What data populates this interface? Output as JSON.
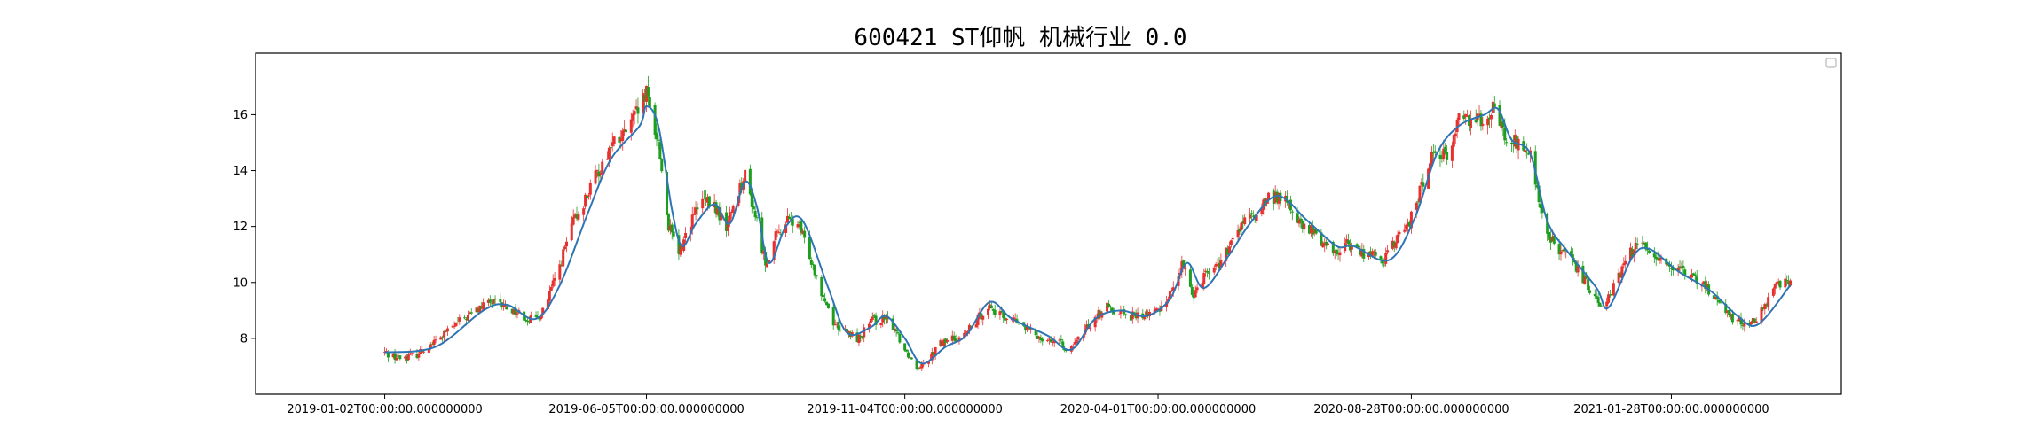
{
  "chart_data": {
    "type": "candlestick",
    "title": "600421 ST仰帆 机械行业 0.0",
    "xlabel": "",
    "ylabel": "",
    "ylim": [
      6.0,
      18.2
    ],
    "yticks": [
      8,
      10,
      12,
      14,
      16
    ],
    "legend": "top-right (empty)",
    "grid": false,
    "colors": {
      "up": "#e8312f",
      "down": "#1e9e1e",
      "line": "#2e75b6",
      "frame": "#000000"
    },
    "x_tick_labels": [
      "2019-01-02T00:00:00.000000000",
      "2019-06-05T00:00:00.000000000",
      "2019-11-04T00:00:00.000000000",
      "2020-04-01T00:00:00.000000000",
      "2020-08-28T00:00:00.000000000",
      "2021-01-28T00:00:00.000000000"
    ],
    "x_tick_dates": [
      "2019-01-02",
      "2019-06-05",
      "2019-11-04",
      "2020-04-01",
      "2020-08-28",
      "2021-01-28"
    ],
    "x_range": [
      "2018-10-18",
      "2021-05-08"
    ],
    "price_path": [
      [
        "2019-01-02",
        7.5
      ],
      [
        "2019-01-10",
        7.3
      ],
      [
        "2019-01-20",
        7.4
      ],
      [
        "2019-02-01",
        7.9
      ],
      [
        "2019-02-15",
        8.6
      ],
      [
        "2019-02-25",
        9.0
      ],
      [
        "2019-03-05",
        9.3
      ],
      [
        "2019-03-15",
        9.1
      ],
      [
        "2019-03-25",
        8.8
      ],
      [
        "2019-04-01",
        8.6
      ],
      [
        "2019-04-08",
        9.4
      ],
      [
        "2019-04-15",
        10.6
      ],
      [
        "2019-04-22",
        12.0
      ],
      [
        "2019-04-30",
        13.0
      ],
      [
        "2019-05-08",
        14.0
      ],
      [
        "2019-05-15",
        14.9
      ],
      [
        "2019-05-22",
        15.2
      ],
      [
        "2019-05-30",
        16.0
      ],
      [
        "2019-06-05",
        16.7
      ],
      [
        "2019-06-12",
        15.0
      ],
      [
        "2019-06-18",
        12.0
      ],
      [
        "2019-06-24",
        11.0
      ],
      [
        "2019-07-01",
        12.2
      ],
      [
        "2019-07-08",
        12.9
      ],
      [
        "2019-07-15",
        12.7
      ],
      [
        "2019-07-22",
        12.0
      ],
      [
        "2019-07-29",
        13.3
      ],
      [
        "2019-08-02",
        13.8
      ],
      [
        "2019-08-08",
        12.4
      ],
      [
        "2019-08-14",
        10.7
      ],
      [
        "2019-08-20",
        11.6
      ],
      [
        "2019-08-26",
        12.2
      ],
      [
        "2019-09-02",
        12.1
      ],
      [
        "2019-09-09",
        11.0
      ],
      [
        "2019-09-16",
        9.7
      ],
      [
        "2019-09-23",
        8.6
      ],
      [
        "2019-09-30",
        8.2
      ],
      [
        "2019-10-08",
        8.0
      ],
      [
        "2019-10-15",
        8.6
      ],
      [
        "2019-10-22",
        8.7
      ],
      [
        "2019-10-29",
        8.4
      ],
      [
        "2019-11-04",
        7.6
      ],
      [
        "2019-11-11",
        7.0
      ],
      [
        "2019-11-18",
        7.3
      ],
      [
        "2019-11-25",
        7.8
      ],
      [
        "2019-12-02",
        8.0
      ],
      [
        "2019-12-09",
        8.1
      ],
      [
        "2019-12-16",
        8.6
      ],
      [
        "2019-12-23",
        9.2
      ],
      [
        "2019-12-30",
        8.8
      ],
      [
        "2020-01-06",
        8.7
      ],
      [
        "2020-01-13",
        8.4
      ],
      [
        "2020-01-20",
        8.1
      ],
      [
        "2020-01-27",
        8.0
      ],
      [
        "2020-02-03",
        7.8
      ],
      [
        "2020-02-10",
        7.6
      ],
      [
        "2020-02-17",
        8.2
      ],
      [
        "2020-02-24",
        8.8
      ],
      [
        "2020-03-02",
        9.1
      ],
      [
        "2020-03-09",
        9.0
      ],
      [
        "2020-03-16",
        8.8
      ],
      [
        "2020-03-23",
        8.8
      ],
      [
        "2020-04-01",
        9.0
      ],
      [
        "2020-04-08",
        9.6
      ],
      [
        "2020-04-15",
        10.6
      ],
      [
        "2020-04-22",
        9.6
      ],
      [
        "2020-04-29",
        10.4
      ],
      [
        "2020-05-06",
        10.6
      ],
      [
        "2020-05-13",
        11.2
      ],
      [
        "2020-05-20",
        12.1
      ],
      [
        "2020-05-27",
        12.3
      ],
      [
        "2020-06-03",
        12.9
      ],
      [
        "2020-06-10",
        13.1
      ],
      [
        "2020-06-17",
        12.8
      ],
      [
        "2020-06-24",
        12.0
      ],
      [
        "2020-07-01",
        11.8
      ],
      [
        "2020-07-08",
        11.4
      ],
      [
        "2020-07-15",
        11.1
      ],
      [
        "2020-07-22",
        11.4
      ],
      [
        "2020-07-29",
        11.1
      ],
      [
        "2020-08-05",
        11.0
      ],
      [
        "2020-08-12",
        10.8
      ],
      [
        "2020-08-19",
        11.5
      ],
      [
        "2020-08-28",
        12.3
      ],
      [
        "2020-09-04",
        13.6
      ],
      [
        "2020-09-11",
        14.9
      ],
      [
        "2020-09-18",
        14.4
      ],
      [
        "2020-09-25",
        15.9
      ],
      [
        "2020-10-02",
        15.9
      ],
      [
        "2020-10-09",
        15.9
      ],
      [
        "2020-10-16",
        16.3
      ],
      [
        "2020-10-23",
        15.0
      ],
      [
        "2020-10-30",
        15.0
      ],
      [
        "2020-11-06",
        14.5
      ],
      [
        "2020-11-13",
        12.3
      ],
      [
        "2020-11-20",
        11.3
      ],
      [
        "2020-11-27",
        11.0
      ],
      [
        "2020-12-04",
        10.4
      ],
      [
        "2020-12-11",
        9.8
      ],
      [
        "2020-12-18",
        9.2
      ],
      [
        "2020-12-25",
        9.8
      ],
      [
        "2021-01-04",
        11.1
      ],
      [
        "2021-01-11",
        11.4
      ],
      [
        "2021-01-18",
        11.0
      ],
      [
        "2021-01-28",
        10.6
      ],
      [
        "2021-02-04",
        10.3
      ],
      [
        "2021-02-11",
        10.1
      ],
      [
        "2021-02-18",
        9.8
      ],
      [
        "2021-02-25",
        9.3
      ],
      [
        "2021-03-04",
        8.8
      ],
      [
        "2021-03-11",
        8.5
      ],
      [
        "2021-03-18",
        8.6
      ],
      [
        "2021-03-25",
        9.2
      ],
      [
        "2021-04-01",
        10.0
      ],
      [
        "2021-04-08",
        10.1
      ]
    ],
    "moving_average": [
      [
        "2019-01-02",
        7.5
      ],
      [
        "2019-02-01",
        7.7
      ],
      [
        "2019-03-01",
        9.0
      ],
      [
        "2019-03-15",
        9.2
      ],
      [
        "2019-04-01",
        8.7
      ],
      [
        "2019-04-15",
        9.9
      ],
      [
        "2019-05-01",
        12.4
      ],
      [
        "2019-05-15",
        14.4
      ],
      [
        "2019-06-01",
        15.6
      ],
      [
        "2019-06-05",
        16.3
      ],
      [
        "2019-06-12",
        15.6
      ],
      [
        "2019-06-20",
        12.6
      ],
      [
        "2019-06-26",
        11.3
      ],
      [
        "2019-07-04",
        12.1
      ],
      [
        "2019-07-15",
        12.8
      ],
      [
        "2019-07-24",
        12.1
      ],
      [
        "2019-08-02",
        13.6
      ],
      [
        "2019-08-09",
        12.7
      ],
      [
        "2019-08-16",
        10.7
      ],
      [
        "2019-08-26",
        12.0
      ],
      [
        "2019-09-05",
        12.2
      ],
      [
        "2019-09-20",
        9.8
      ],
      [
        "2019-10-01",
        8.2
      ],
      [
        "2019-10-15",
        8.4
      ],
      [
        "2019-10-24",
        8.8
      ],
      [
        "2019-11-04",
        8.0
      ],
      [
        "2019-11-14",
        7.1
      ],
      [
        "2019-11-28",
        7.7
      ],
      [
        "2019-12-10",
        8.1
      ],
      [
        "2019-12-24",
        9.3
      ],
      [
        "2020-01-06",
        8.7
      ],
      [
        "2020-01-27",
        8.1
      ],
      [
        "2020-02-10",
        7.6
      ],
      [
        "2020-02-24",
        8.7
      ],
      [
        "2020-03-10",
        9.0
      ],
      [
        "2020-03-25",
        8.8
      ],
      [
        "2020-04-08",
        9.4
      ],
      [
        "2020-04-18",
        10.7
      ],
      [
        "2020-04-28",
        9.8
      ],
      [
        "2020-05-13",
        11.0
      ],
      [
        "2020-05-25",
        12.1
      ],
      [
        "2020-06-10",
        13.1
      ],
      [
        "2020-06-28",
        12.2
      ],
      [
        "2020-07-15",
        11.3
      ],
      [
        "2020-07-25",
        11.3
      ],
      [
        "2020-08-15",
        10.8
      ],
      [
        "2020-08-30",
        12.3
      ],
      [
        "2020-09-12",
        14.6
      ],
      [
        "2020-09-25",
        15.6
      ],
      [
        "2020-10-10",
        16.0
      ],
      [
        "2020-10-18",
        16.2
      ],
      [
        "2020-10-26",
        15.1
      ],
      [
        "2020-11-06",
        14.6
      ],
      [
        "2020-11-16",
        12.2
      ],
      [
        "2020-11-28",
        11.1
      ],
      [
        "2020-12-15",
        9.8
      ],
      [
        "2020-12-22",
        9.1
      ],
      [
        "2021-01-05",
        10.9
      ],
      [
        "2021-01-15",
        11.2
      ],
      [
        "2021-02-01",
        10.4
      ],
      [
        "2021-02-20",
        9.7
      ],
      [
        "2021-03-08",
        8.8
      ],
      [
        "2021-03-20",
        8.5
      ],
      [
        "2021-04-08",
        9.9
      ]
    ]
  }
}
